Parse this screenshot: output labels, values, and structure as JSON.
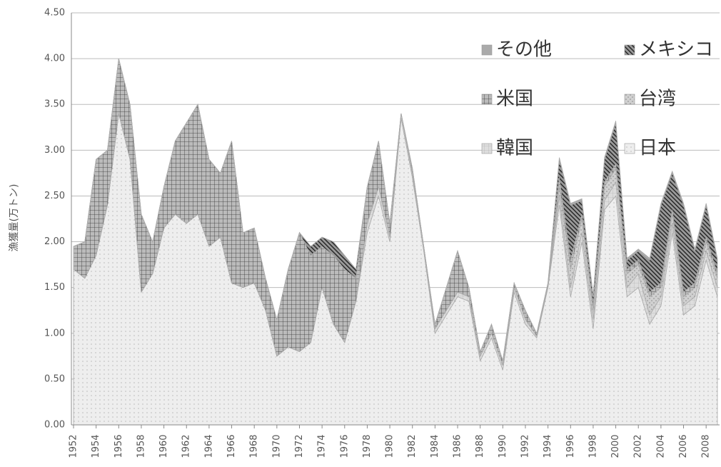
{
  "chart_data": {
    "type": "stacked_area",
    "ylabel": "漁獲量(万トン)",
    "x": [
      1952,
      1953,
      1954,
      1955,
      1956,
      1957,
      1958,
      1959,
      1960,
      1961,
      1962,
      1963,
      1964,
      1965,
      1966,
      1967,
      1968,
      1969,
      1970,
      1971,
      1972,
      1973,
      1974,
      1975,
      1976,
      1977,
      1978,
      1979,
      1980,
      1981,
      1982,
      1983,
      1984,
      1985,
      1986,
      1987,
      1988,
      1989,
      1990,
      1991,
      1992,
      1993,
      1994,
      1995,
      1996,
      1997,
      1998,
      1999,
      2000,
      2001,
      2002,
      2003,
      2004,
      2005,
      2006,
      2007,
      2008,
      2009
    ],
    "xlim": [
      1952,
      2009
    ],
    "xticks": [
      1952,
      1954,
      1956,
      1958,
      1960,
      1962,
      1964,
      1966,
      1968,
      1970,
      1972,
      1974,
      1976,
      1978,
      1980,
      1982,
      1984,
      1986,
      1988,
      1990,
      1992,
      1994,
      1996,
      1998,
      2000,
      2002,
      2004,
      2006,
      2008
    ],
    "ylim": [
      0,
      4.5
    ],
    "yticks": [
      {
        "value": 0,
        "label": "0.00"
      },
      {
        "value": 0.5,
        "label": "0.50"
      },
      {
        "value": 1,
        "label": "1.00"
      },
      {
        "value": 1.5,
        "label": "1.50"
      },
      {
        "value": 2,
        "label": "2.00"
      },
      {
        "value": 2.5,
        "label": "2.50"
      },
      {
        "value": 3,
        "label": "3.00"
      },
      {
        "value": 3.5,
        "label": "3.50"
      },
      {
        "value": 4,
        "label": "4.00"
      },
      {
        "value": 4.5,
        "label": "4.50"
      }
    ],
    "grid": true,
    "series": [
      {
        "name": "日本",
        "color": "#eeeeee",
        "values": [
          1.7,
          1.6,
          1.85,
          2.4,
          3.4,
          2.9,
          1.45,
          1.65,
          2.15,
          2.3,
          2.2,
          2.3,
          1.95,
          2.05,
          1.55,
          1.5,
          1.55,
          1.25,
          0.75,
          0.85,
          0.8,
          0.9,
          1.5,
          1.1,
          0.9,
          1.35,
          2.1,
          2.5,
          2.0,
          3.35,
          2.7,
          1.9,
          1.0,
          1.2,
          1.4,
          1.35,
          0.7,
          0.95,
          0.6,
          1.45,
          1.1,
          0.95,
          1.5,
          2.4,
          1.4,
          2.0,
          1.05,
          2.35,
          2.5,
          1.4,
          1.5,
          1.1,
          1.3,
          2.1,
          1.2,
          1.3,
          1.8,
          1.4
        ]
      },
      {
        "name": "韓国",
        "color": "#dddddd",
        "values": [
          0,
          0,
          0,
          0,
          0,
          0,
          0,
          0,
          0,
          0,
          0,
          0,
          0,
          0,
          0,
          0,
          0,
          0,
          0,
          0,
          0,
          0,
          0,
          0,
          0,
          0,
          0.1,
          0.1,
          0.05,
          0.05,
          0.05,
          0.05,
          0.05,
          0.05,
          0.05,
          0.05,
          0.05,
          0.05,
          0.05,
          0.05,
          0.05,
          0.02,
          0.02,
          0.1,
          0.1,
          0.1,
          0.1,
          0.1,
          0.15,
          0.1,
          0.15,
          0.1,
          0.1,
          0.1,
          0.1,
          0.1,
          0.1,
          0.1
        ]
      },
      {
        "name": "台湾",
        "color": "#d0d0d0",
        "values": [
          0,
          0,
          0,
          0,
          0,
          0,
          0,
          0,
          0,
          0,
          0,
          0,
          0,
          0,
          0,
          0,
          0,
          0,
          0,
          0,
          0,
          0,
          0,
          0,
          0,
          0,
          0,
          0,
          0,
          0,
          0,
          0,
          0,
          0,
          0,
          0,
          0,
          0,
          0,
          0,
          0,
          0,
          0,
          0.1,
          0.2,
          0.15,
          0.1,
          0.15,
          0.15,
          0.15,
          0.1,
          0.2,
          0.1,
          0.1,
          0.1,
          0.1,
          0.1,
          0.1
        ]
      },
      {
        "name": "米国",
        "color": "#bbbbbb",
        "values": [
          0.25,
          0.4,
          1.05,
          0.6,
          0.6,
          0.6,
          0.85,
          0.35,
          0.45,
          0.8,
          1.1,
          1.2,
          0.95,
          0.7,
          1.55,
          0.6,
          0.6,
          0.35,
          0.4,
          0.85,
          1.3,
          0.95,
          0.45,
          0.75,
          0.8,
          0.25,
          0.4,
          0.5,
          0.15,
          0,
          0.05,
          0,
          0.05,
          0.25,
          0.45,
          0.1,
          0.05,
          0.1,
          0.05,
          0.05,
          0.1,
          0.03,
          0.03,
          0.1,
          0.1,
          0.05,
          0.05,
          0.05,
          0.05,
          0.05,
          0.05,
          0.05,
          0.05,
          0.05,
          0.05,
          0.05,
          0.05,
          0.05
        ]
      },
      {
        "name": "メキシコ",
        "color": "#999999",
        "values": [
          0,
          0,
          0,
          0,
          0,
          0,
          0,
          0,
          0,
          0,
          0,
          0,
          0,
          0,
          0,
          0,
          0,
          0,
          0,
          0,
          0,
          0.1,
          0.1,
          0.15,
          0.15,
          0.1,
          0,
          0,
          0,
          0,
          0,
          0,
          0,
          0,
          0,
          0,
          0,
          0,
          0,
          0,
          0,
          0,
          0,
          0.2,
          0.6,
          0.15,
          0.1,
          0.25,
          0.45,
          0.1,
          0.1,
          0.35,
          0.85,
          0.4,
          0.95,
          0.35,
          0.35,
          0.15
        ]
      },
      {
        "name": "その他",
        "color": "#aaaaaa",
        "values": [
          0,
          0,
          0,
          0,
          0,
          0,
          0,
          0,
          0,
          0,
          0,
          0,
          0,
          0,
          0,
          0,
          0,
          0,
          0,
          0,
          0,
          0,
          0,
          0,
          0,
          0,
          0,
          0,
          0,
          0,
          0,
          0,
          0,
          0,
          0,
          0,
          0,
          0,
          0,
          0,
          0,
          0,
          0,
          0.02,
          0.02,
          0.02,
          0.02,
          0.02,
          0.02,
          0.02,
          0.02,
          0.02,
          0.02,
          0.02,
          0.02,
          0.02,
          0.02,
          0.02
        ]
      }
    ]
  }
}
